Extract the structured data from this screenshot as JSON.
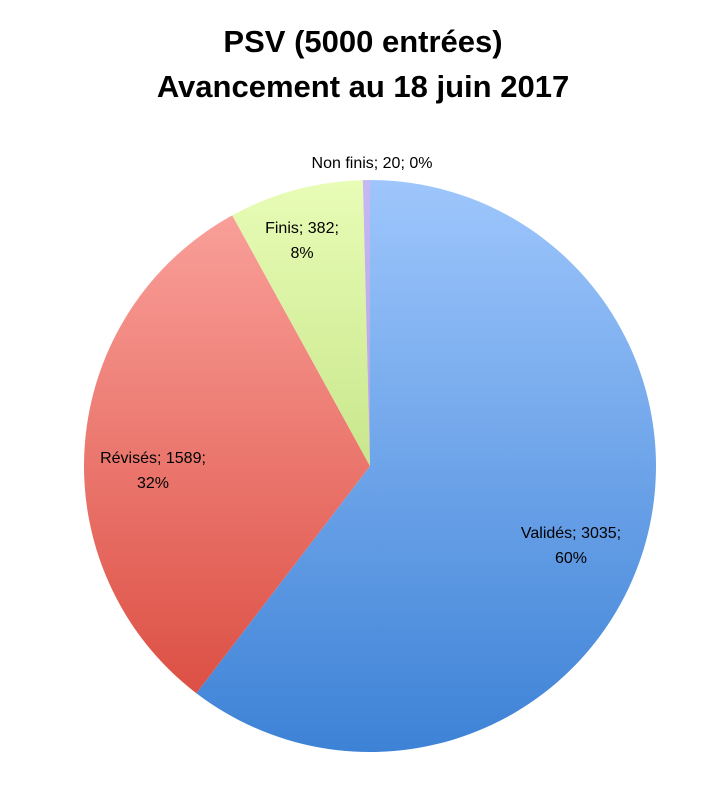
{
  "chart_data": {
    "type": "pie",
    "title": [
      "PSV (5000 entrées)",
      "Avancement au 18 juin 2017"
    ],
    "slices": [
      {
        "label": "Validés",
        "value": 3035,
        "percent": "60%",
        "color": "#5b9be0",
        "color_light": "#9ec6fc",
        "color_dark": "#3d82d6"
      },
      {
        "label": "Révisés",
        "value": 1589,
        "percent": "32%",
        "color": "#e86d64",
        "color_light": "#fba59f",
        "color_dark": "#d9463a"
      },
      {
        "label": "Finis",
        "value": 382,
        "percent": "8%",
        "color": "#bde385",
        "color_light": "#e8fcb6",
        "color_dark": "#a9d262"
      },
      {
        "label": "Non finis",
        "value": 20,
        "percent": "0%",
        "color": "#b3a4e8",
        "color_light": "#c6b9f2",
        "color_dark": "#9c8bd8"
      }
    ],
    "data_labels": [
      {
        "lines": [
          "Validés; 3035;",
          "60%"
        ]
      },
      {
        "lines": [
          "Révisés; 1589;",
          "32%"
        ]
      },
      {
        "lines": [
          "Finis; 382;",
          "8%"
        ]
      },
      {
        "lines": [
          "Non finis; 20; 0%"
        ]
      }
    ]
  }
}
